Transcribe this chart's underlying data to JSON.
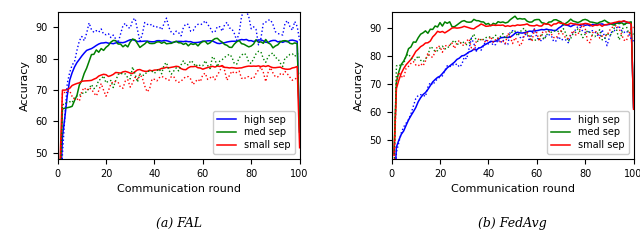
{
  "title_a": "(a) FAL",
  "title_b": "(b) FedAvg",
  "xlabel": "Communication round",
  "ylabel": "Accuracy",
  "legend_labels": [
    "high sep",
    "med sep",
    "small sep"
  ],
  "colors": [
    "blue",
    "green",
    "red"
  ],
  "fal_xlim": [
    0,
    100
  ],
  "fal_ylim": [
    48,
    95
  ],
  "fedavg_xlim": [
    0,
    100
  ],
  "fedavg_ylim": [
    43,
    96
  ],
  "fal_yticks": [
    50,
    60,
    70,
    80,
    90
  ],
  "fedavg_yticks": [
    50,
    60,
    70,
    80,
    90
  ],
  "seed": 17
}
